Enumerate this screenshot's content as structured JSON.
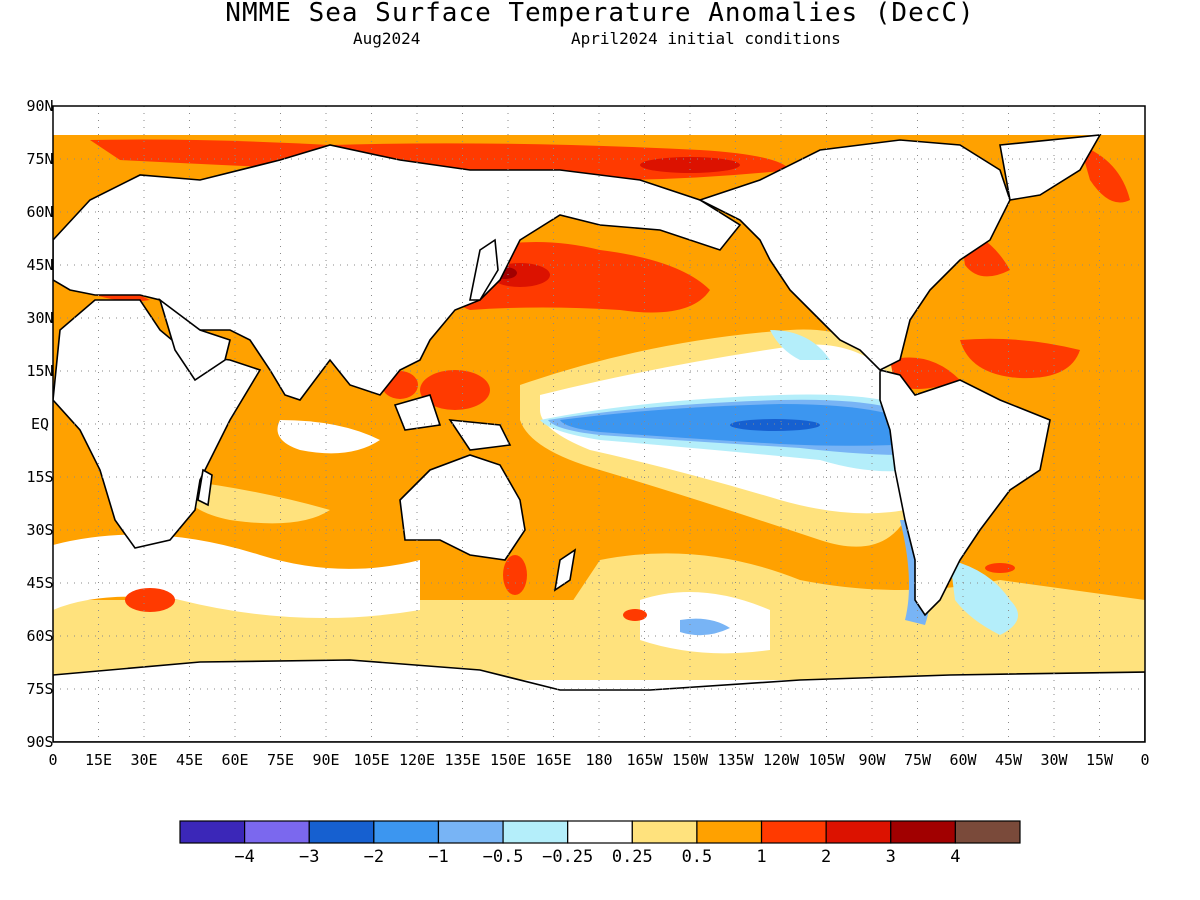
{
  "header": {
    "title": "NMME Sea Surface Temperature Anomalies (DecC)",
    "valid_month": "Aug2024",
    "init": "April2024 initial conditions"
  },
  "map": {
    "lat_labels": [
      "90N",
      "75N",
      "60N",
      "45N",
      "30N",
      "15N",
      "EQ",
      "15S",
      "30S",
      "45S",
      "60S",
      "75S",
      "90S"
    ],
    "lon_labels": [
      "0",
      "15E",
      "30E",
      "45E",
      "60E",
      "75E",
      "90E",
      "105E",
      "120E",
      "135E",
      "150E",
      "165E",
      "180",
      "165W",
      "150W",
      "135W",
      "120W",
      "105W",
      "90W",
      "75W",
      "60W",
      "45W",
      "30W",
      "15W",
      "0"
    ],
    "grid": "dotted"
  },
  "colorbar": {
    "colors": [
      "#3b27b8",
      "#7b68ee",
      "#1660d0",
      "#3c96f0",
      "#78b4f5",
      "#b4eefa",
      "#ffffff",
      "#ffe27d",
      "#ffa100",
      "#ff3a00",
      "#dc1200",
      "#a10000",
      "#7a4a3a"
    ],
    "labels": [
      "−4",
      "−3",
      "−2",
      "−1",
      "−0.5",
      "−0.25",
      "0.25",
      "0.5",
      "1",
      "2",
      "3",
      "4"
    ]
  }
}
